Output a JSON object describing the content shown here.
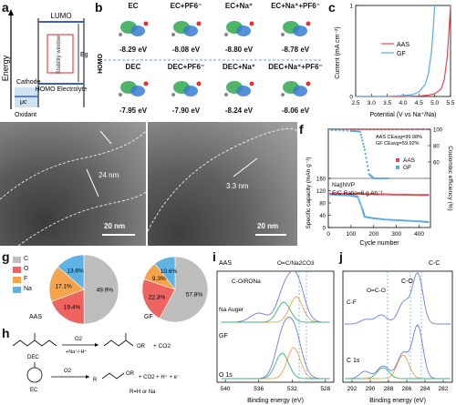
{
  "panel_labels": [
    "a",
    "b",
    "c",
    "d",
    "e",
    "f",
    "g",
    "h",
    "i",
    "j"
  ],
  "panel_a": {
    "y_label": "Energy",
    "lumo": "LUMO",
    "homo_electrolyte": "HOMO Electrolyte",
    "cathode": "Cathode",
    "mu_c": "μc",
    "oxidant": "Oxidant",
    "stability_window": "Stability window",
    "eg": "Eg"
  },
  "panel_b": {
    "homo_label": "HOMO",
    "top_row": [
      {
        "name": "EC",
        "energy": "-8.29 eV"
      },
      {
        "name": "EC+PF6⁻",
        "energy": "-8.08 eV"
      },
      {
        "name": "EC+Na⁺",
        "energy": "-8.80 eV"
      },
      {
        "name": "EC+Na⁺+PF6⁻",
        "energy": "-8.78 eV"
      }
    ],
    "bottom_row": [
      {
        "name": "DEC",
        "energy": "-7.95 eV"
      },
      {
        "name": "DEC+PF6⁻",
        "energy": "-7.90 eV"
      },
      {
        "name": "DEC+Na⁺",
        "energy": "-8.24 eV"
      },
      {
        "name": "DEC+Na⁺+PF6⁻",
        "energy": "-8.06 eV"
      }
    ]
  },
  "chart_data": [
    {
      "type": "line",
      "panel": "c",
      "xlabel": "Potential (V vs Na⁺/Na)",
      "ylabel": "Current (mA cm⁻²)",
      "xlim": [
        2.5,
        5.5
      ],
      "ylim": [
        0,
        1
      ],
      "x_ticks": [
        "2.5",
        "3.0",
        "3.5",
        "4.0",
        "4.5",
        "5.0",
        "5.5"
      ],
      "y_ticks": [
        "0",
        "1"
      ],
      "series": [
        {
          "name": "AAS",
          "color": "#e8474f",
          "x": [
            2.5,
            3.0,
            3.5,
            4.0,
            4.5,
            4.8,
            5.0,
            5.2,
            5.3,
            5.4,
            5.45,
            5.5
          ],
          "y": [
            0,
            0,
            0,
            0,
            0.005,
            0.015,
            0.03,
            0.08,
            0.18,
            0.45,
            0.72,
            1.0
          ]
        },
        {
          "name": "GF",
          "color": "#5aa8e0",
          "x": [
            2.5,
            3.0,
            3.5,
            4.0,
            4.3,
            4.5,
            4.7,
            4.8,
            4.9,
            4.95,
            5.0
          ],
          "y": [
            0,
            0,
            0,
            0.01,
            0.02,
            0.05,
            0.13,
            0.25,
            0.5,
            0.72,
            1.0
          ]
        }
      ]
    },
    {
      "type": "scatter",
      "panel": "f",
      "xlabel": "Cycle number",
      "ylabel": "Specific capacity (mAh g⁻¹)",
      "ylabel_right": "Coulombic efficiency (%)",
      "xlim": [
        0,
        450
      ],
      "ylim": [
        0,
        160
      ],
      "ylim_right": [
        0,
        100
      ],
      "x_ticks": [
        "0",
        "100",
        "200",
        "300",
        "400"
      ],
      "y_ticks": [
        "0",
        "40",
        "80",
        "120",
        "160"
      ],
      "y_ticks_right": [
        "60",
        "80",
        "100"
      ],
      "legend": [
        "AAS",
        "GF"
      ],
      "annotation_ce": "AAS CEavg=99.98%\nGF  CEavg=59.92%",
      "annotation_cell": "Na||NVP",
      "annotation_ratio": "E/C Ratio=6 g Ah⁻¹",
      "series": [
        {
          "name": "AAS",
          "color": "#e8474f",
          "capacity": [
            [
              0,
              110
            ],
            [
              50,
              110
            ],
            [
              100,
              109
            ],
            [
              150,
              109
            ],
            [
              200,
              108
            ],
            [
              250,
              108
            ],
            [
              300,
              107
            ],
            [
              350,
              107
            ],
            [
              400,
              106
            ],
            [
              440,
              106
            ]
          ],
          "ce": [
            [
              0,
              99.9
            ],
            [
              100,
              99.9
            ],
            [
              200,
              99.9
            ],
            [
              300,
              99.9
            ],
            [
              440,
              99.9
            ]
          ]
        },
        {
          "name": "GF",
          "color": "#5aa8e0",
          "capacity": [
            [
              0,
              108
            ],
            [
              50,
              106
            ],
            [
              100,
              104
            ],
            [
              130,
              100
            ],
            [
              150,
              60
            ],
            [
              160,
              35
            ],
            [
              200,
              30
            ],
            [
              250,
              26
            ],
            [
              300,
              24
            ],
            [
              350,
              22
            ],
            [
              400,
              20
            ],
            [
              440,
              18
            ]
          ],
          "ce": [
            [
              0,
              99
            ],
            [
              100,
              98
            ],
            [
              140,
              97
            ],
            [
              160,
              75
            ],
            [
              180,
              45
            ],
            [
              200,
              40
            ],
            [
              260,
              40
            ]
          ]
        }
      ]
    },
    {
      "type": "pie",
      "panel": "g-AAS",
      "title": "AAS",
      "categories": [
        "C",
        "O",
        "F",
        "Na"
      ],
      "values": [
        49.9,
        19.4,
        17.1,
        13.6
      ],
      "labels": [
        "49.9%",
        "19.4%",
        "17.1%",
        "13.6%"
      ],
      "colors": [
        "#bdbdbd",
        "#ef6461",
        "#f5a44c",
        "#5eb3e4"
      ]
    },
    {
      "type": "pie",
      "panel": "g-GF",
      "title": "GF",
      "categories": [
        "C",
        "O",
        "F",
        "Na"
      ],
      "values": [
        57.8,
        22.3,
        9.3,
        10.6
      ],
      "labels": [
        "57.8%",
        "22.3%",
        "9.3%",
        "10.6%"
      ],
      "colors": [
        "#bdbdbd",
        "#ef6461",
        "#f5a44c",
        "#5eb3e4"
      ]
    },
    {
      "type": "line",
      "panel": "i",
      "xlabel": "Binding energy (eV)",
      "x_ticks": [
        "540",
        "536",
        "532",
        "528"
      ],
      "labels": [
        "AAS",
        "Na Auger",
        "GF",
        "O 1s",
        "C-O/RONa",
        "O=C/Na2CO3"
      ]
    },
    {
      "type": "line",
      "panel": "j",
      "xlabel": "Binding energy (eV)",
      "x_ticks": [
        "292",
        "290",
        "288",
        "286",
        "284",
        "282"
      ],
      "labels": [
        "C-F",
        "O=C-O",
        "C-O",
        "C-C",
        "C 1s"
      ]
    }
  ],
  "panel_g_legend": [
    {
      "label": "C",
      "color": "#bdbdbd"
    },
    {
      "label": "O",
      "color": "#ef6461"
    },
    {
      "label": "F",
      "color": "#f5a44c"
    },
    {
      "label": "Na",
      "color": "#5eb3e4"
    }
  ],
  "panel_d": {
    "thickness": "24 nm",
    "scale": "20 nm"
  },
  "panel_e": {
    "thickness": "3.3 nm",
    "scale": "20 nm"
  },
  "panel_h": {
    "dec": "DEC",
    "ec": "EC",
    "o2_top": "O2",
    "o2_bottom": "O2",
    "reagent_top": "+Na⁺/-H⁺",
    "co2_top": "+  CO2",
    "co2_bottom": "+ CO2 + H⁺ + e⁻",
    "r_def": "R=H or Na"
  }
}
